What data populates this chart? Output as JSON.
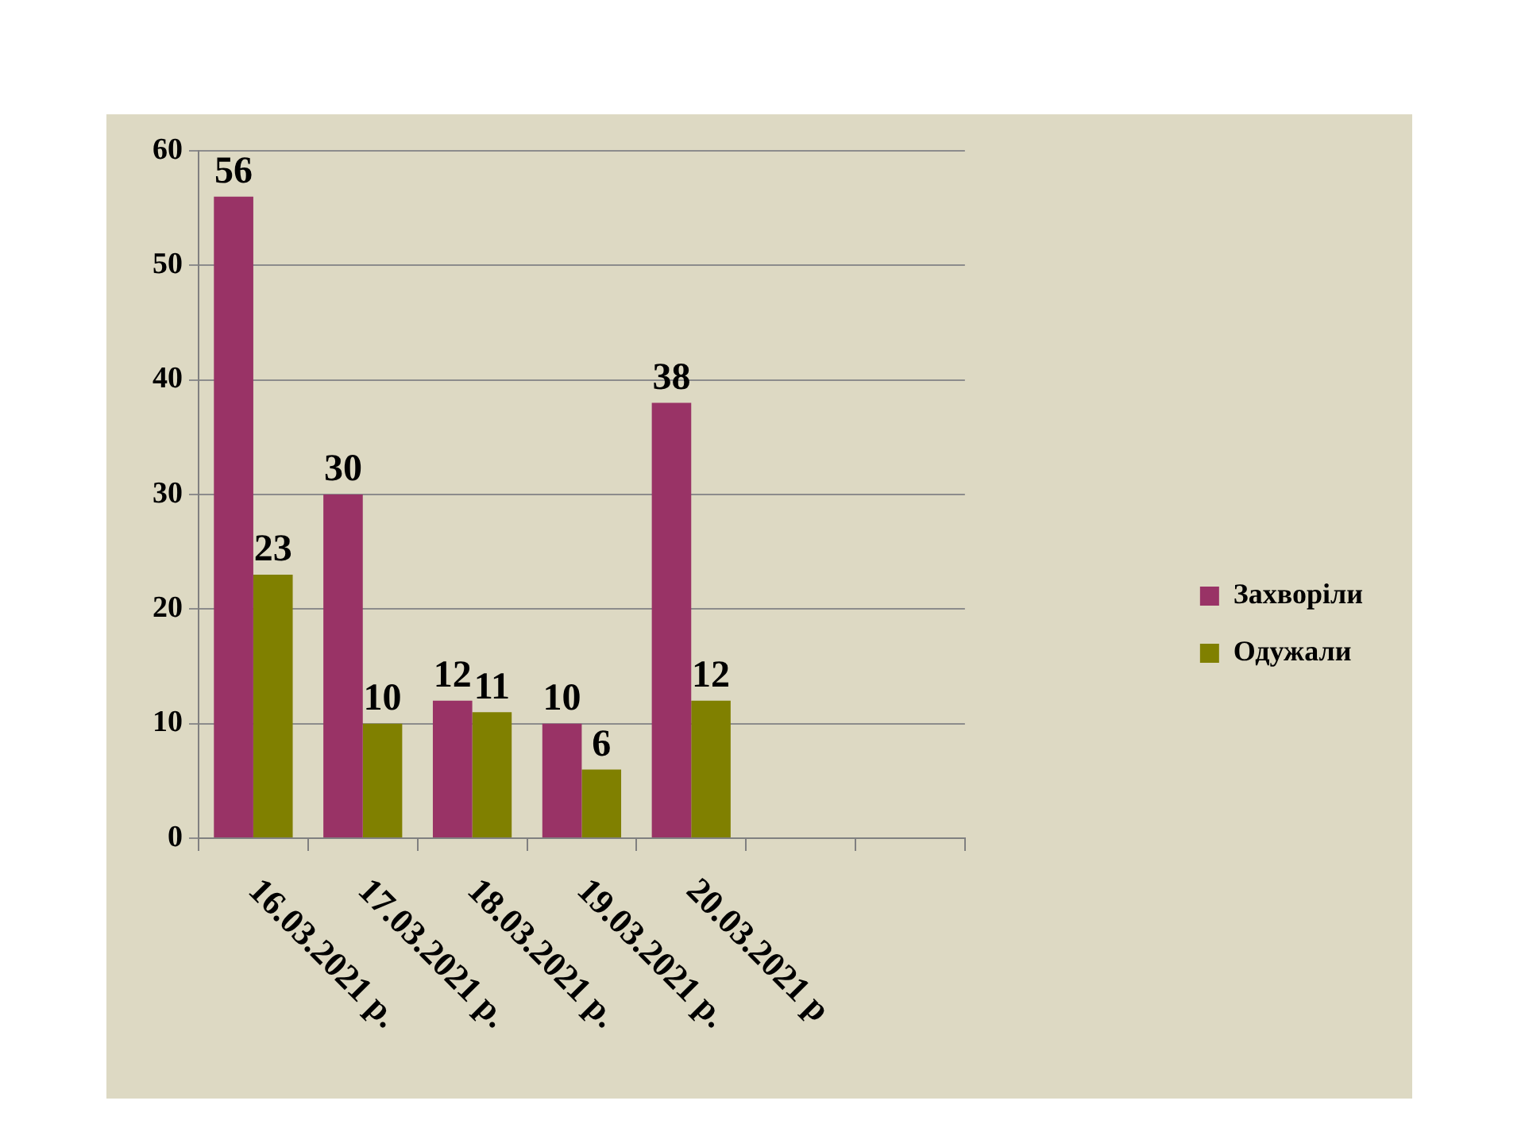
{
  "chart_data": {
    "type": "bar",
    "categories": [
      "16.03.2021 р.",
      "17.03.2021 р.",
      "18.03.2021 р.",
      "19.03.2021 р.",
      "20.03.2021 р",
      null,
      null
    ],
    "series": [
      {
        "name": "Захворіли",
        "color": "#993366",
        "values": [
          56,
          30,
          12,
          10,
          38,
          null,
          null
        ]
      },
      {
        "name": "Одужали",
        "color": "#808000",
        "values": [
          23,
          10,
          11,
          6,
          12,
          null,
          null
        ]
      }
    ],
    "ylim": [
      0,
      60
    ],
    "yticks": [
      0,
      10,
      20,
      30,
      40,
      50,
      60
    ],
    "grid": "y",
    "legend": "right",
    "data_labels": true
  }
}
